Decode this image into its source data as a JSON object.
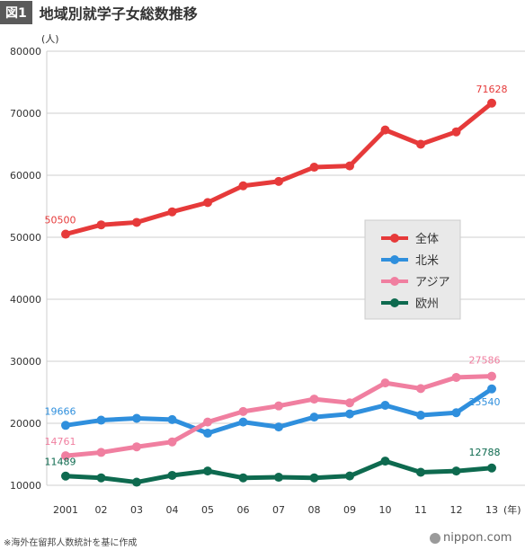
{
  "header": {
    "badge": "図1",
    "title": "地域別就学子女総数推移"
  },
  "footnote": "※海外在留邦人数統計を基に作成",
  "brand": "nippon.com",
  "chart_data": {
    "type": "line",
    "title": "地域別就学子女総数推移",
    "ylabel": "(人)",
    "xlabel": "(年)",
    "ylim": [
      10000,
      80000
    ],
    "yticks": [
      10000,
      20000,
      30000,
      40000,
      50000,
      60000,
      70000,
      80000
    ],
    "categories": [
      "2001",
      "02",
      "03",
      "04",
      "05",
      "06",
      "07",
      "08",
      "09",
      "10",
      "11",
      "12",
      "13"
    ],
    "grid": "horizontal",
    "legend_position": "center-right",
    "series": [
      {
        "name": "全体",
        "color": "#e63a3a",
        "values": [
          50500,
          52000,
          52400,
          54100,
          55600,
          58300,
          59000,
          61300,
          61500,
          67300,
          65000,
          67000,
          71628
        ],
        "labels": [
          {
            "index": 0,
            "text": "50500"
          },
          {
            "index": 12,
            "text": "71628"
          }
        ]
      },
      {
        "name": "北米",
        "color": "#2f8fdd",
        "values": [
          19666,
          20500,
          20800,
          20600,
          18400,
          20200,
          19400,
          21000,
          21500,
          22900,
          21300,
          21700,
          25540
        ],
        "labels": [
          {
            "index": 0,
            "text": "19666"
          },
          {
            "index": 12,
            "text": "25540"
          }
        ]
      },
      {
        "name": "アジア",
        "color": "#f07fa0",
        "values": [
          14761,
          15300,
          16200,
          17000,
          20200,
          21900,
          22800,
          23900,
          23300,
          26500,
          25600,
          27400,
          27586
        ],
        "labels": [
          {
            "index": 0,
            "text": "14761"
          },
          {
            "index": 12,
            "text": "27586"
          }
        ]
      },
      {
        "name": "欧州",
        "color": "#0e6a4f",
        "values": [
          11489,
          11200,
          10500,
          11600,
          12300,
          11200,
          11300,
          11200,
          11500,
          13900,
          12100,
          12300,
          12788
        ],
        "labels": [
          {
            "index": 0,
            "text": "11489"
          },
          {
            "index": 12,
            "text": "12788"
          }
        ]
      }
    ]
  }
}
